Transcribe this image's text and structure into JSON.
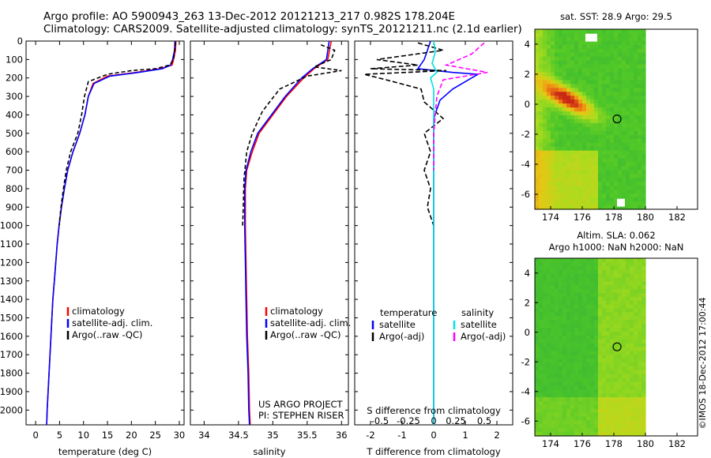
{
  "header": {
    "line1": "Argo profile: AO 5900943_263 13-Dec-2012 20121213_217 0.982S 178.204E",
    "line2": "Climatology: CARS2009. Satellite-adjusted climatology: synTS_20121211.nc (2.1d earlier)"
  },
  "colors": {
    "climatology": "#ff0000",
    "satellite": "#0000ff",
    "argo": "#000000",
    "satellite_salinity": "#00e0e0",
    "argo_salinity": "#ff00ff"
  },
  "chart_data": [
    {
      "type": "line",
      "name": "temperature-profile",
      "xlabel": "temperature (deg C)",
      "ylabel": "",
      "xlim": [
        -2,
        31
      ],
      "ylim": [
        2080,
        0
      ],
      "xticks": [
        0,
        5,
        10,
        15,
        20,
        25,
        30
      ],
      "yticks": [
        0,
        100,
        200,
        300,
        400,
        500,
        600,
        700,
        800,
        900,
        1000,
        1100,
        1200,
        1300,
        1400,
        1500,
        1600,
        1700,
        1800,
        1900,
        2000
      ],
      "legend": [
        "climatology",
        "satellite-adj. clim.",
        "Argo(..raw -QC)"
      ],
      "series": [
        {
          "name": "climatology",
          "color": "#ff0000",
          "dash": "",
          "points": [
            [
              29.3,
              0
            ],
            [
              29.2,
              50
            ],
            [
              28.8,
              100
            ],
            [
              28.5,
              130
            ],
            [
              26,
              150
            ],
            [
              21,
              170
            ],
            [
              15,
              190
            ],
            [
              12,
              230
            ],
            [
              11,
              300
            ],
            [
              10.3,
              400
            ],
            [
              9.2,
              500
            ],
            [
              7.8,
              600
            ],
            [
              6.7,
              700
            ],
            [
              6,
              800
            ],
            [
              5.4,
              900
            ],
            [
              4.9,
              1000
            ],
            [
              4.5,
              1100
            ],
            [
              4.2,
              1200
            ],
            [
              3.9,
              1300
            ],
            [
              3.6,
              1400
            ],
            [
              3.4,
              1500
            ],
            [
              3.2,
              1600
            ],
            [
              3,
              1700
            ],
            [
              2.8,
              1800
            ],
            [
              2.6,
              1900
            ],
            [
              2.4,
              2000
            ],
            [
              2.3,
              2080
            ]
          ]
        },
        {
          "name": "satellite-adj. clim.",
          "color": "#0000ff",
          "dash": "",
          "points": [
            [
              29.1,
              0
            ],
            [
              29,
              50
            ],
            [
              28.6,
              100
            ],
            [
              28.2,
              130
            ],
            [
              26.5,
              150
            ],
            [
              21.5,
              170
            ],
            [
              15.5,
              190
            ],
            [
              12.2,
              230
            ],
            [
              11,
              300
            ],
            [
              10.3,
              400
            ],
            [
              9.2,
              500
            ],
            [
              7.8,
              600
            ],
            [
              6.7,
              700
            ],
            [
              6,
              800
            ],
            [
              5.4,
              900
            ],
            [
              4.9,
              1000
            ],
            [
              4.5,
              1100
            ],
            [
              4.2,
              1200
            ],
            [
              3.9,
              1300
            ],
            [
              3.6,
              1400
            ],
            [
              3.4,
              1500
            ],
            [
              3.2,
              1600
            ],
            [
              3,
              1700
            ],
            [
              2.8,
              1800
            ],
            [
              2.6,
              1900
            ],
            [
              2.4,
              2000
            ],
            [
              2.3,
              2080
            ]
          ]
        },
        {
          "name": "Argo(..raw -QC)",
          "color": "#000000",
          "dash": "5,3",
          "points": [
            [
              29.2,
              5
            ],
            [
              29,
              60
            ],
            [
              28.8,
              100
            ],
            [
              28,
              130
            ],
            [
              25,
              150
            ],
            [
              20,
              160
            ],
            [
              15,
              180
            ],
            [
              11,
              220
            ],
            [
              10.2,
              300
            ],
            [
              9.6,
              400
            ],
            [
              8.8,
              500
            ],
            [
              7.3,
              600
            ],
            [
              6.4,
              700
            ],
            [
              5.8,
              800
            ],
            [
              5.3,
              900
            ],
            [
              4.9,
              1000
            ]
          ]
        }
      ]
    },
    {
      "type": "line",
      "name": "salinity-profile",
      "xlabel": "salinity",
      "xlim": [
        33.8,
        36.1
      ],
      "ylim": [
        2080,
        0
      ],
      "xticks": [
        34,
        34.5,
        35,
        35.5,
        36
      ],
      "legend": [
        "climatology",
        "satellite-adj. clim.",
        "Argo(..raw -QC)"
      ],
      "series": [
        {
          "name": "climatology",
          "color": "#ff0000",
          "dash": "",
          "points": [
            [
              35.85,
              0
            ],
            [
              35.8,
              100
            ],
            [
              35.6,
              150
            ],
            [
              35.45,
              200
            ],
            [
              35.2,
              300
            ],
            [
              35,
              400
            ],
            [
              34.8,
              500
            ],
            [
              34.7,
              600
            ],
            [
              34.62,
              700
            ],
            [
              34.6,
              800
            ],
            [
              34.6,
              1000
            ],
            [
              34.61,
              1200
            ],
            [
              34.62,
              1400
            ],
            [
              34.63,
              1600
            ],
            [
              34.65,
              1800
            ],
            [
              34.66,
              2000
            ],
            [
              34.67,
              2080
            ]
          ]
        },
        {
          "name": "satellite-adj. clim.",
          "color": "#0000ff",
          "dash": "",
          "points": [
            [
              35.82,
              0
            ],
            [
              35.78,
              100
            ],
            [
              35.58,
              150
            ],
            [
              35.42,
              200
            ],
            [
              35.18,
              300
            ],
            [
              34.98,
              400
            ],
            [
              34.78,
              500
            ],
            [
              34.68,
              600
            ],
            [
              34.61,
              700
            ],
            [
              34.59,
              800
            ],
            [
              34.59,
              1000
            ],
            [
              34.6,
              1200
            ],
            [
              34.61,
              1400
            ],
            [
              34.62,
              1600
            ],
            [
              34.64,
              1800
            ],
            [
              34.65,
              2000
            ],
            [
              34.66,
              2080
            ]
          ]
        },
        {
          "name": "Argo(..raw -QC)",
          "color": "#000000",
          "dash": "5,3",
          "points": [
            [
              35.7,
              20
            ],
            [
              35.9,
              50
            ],
            [
              35.85,
              100
            ],
            [
              35.6,
              140
            ],
            [
              36,
              160
            ],
            [
              35.5,
              190
            ],
            [
              35.1,
              260
            ],
            [
              34.85,
              380
            ],
            [
              34.7,
              500
            ],
            [
              34.62,
              600
            ],
            [
              34.58,
              750
            ],
            [
              34.57,
              900
            ],
            [
              34.56,
              1000
            ]
          ]
        }
      ]
    },
    {
      "type": "line",
      "name": "difference-profile",
      "xlabel": "T difference from climatology",
      "xlabel_top": "S difference from climatology",
      "xlim": [
        -2.5,
        2.5
      ],
      "ylim": [
        2080,
        0
      ],
      "xticks": [
        -2,
        -1,
        0,
        1,
        2
      ],
      "sticks_labels": [
        "-0.5",
        "-0.25",
        "0",
        "0.25",
        "0.5"
      ],
      "legend_titles": [
        "temperature",
        "salinity"
      ],
      "legend": [
        "satellite",
        "Argo(-adj)",
        "satellite",
        "Argo(-adj)"
      ],
      "series": [
        {
          "name": "T satellite",
          "color": "#0000ff",
          "dash": "",
          "points": [
            [
              -0.1,
              0
            ],
            [
              -0.2,
              50
            ],
            [
              -0.3,
              100
            ],
            [
              -0.5,
              150
            ],
            [
              0.6,
              170
            ],
            [
              1.4,
              180
            ],
            [
              1.2,
              200
            ],
            [
              0.6,
              260
            ],
            [
              0.2,
              320
            ],
            [
              0,
              420
            ],
            [
              0,
              2080
            ]
          ]
        },
        {
          "name": "T Argo(-adj)",
          "color": "#000000",
          "dash": "6,3",
          "points": [
            [
              -0.5,
              10
            ],
            [
              0.3,
              50
            ],
            [
              -1.8,
              100
            ],
            [
              -0.5,
              130
            ],
            [
              -2,
              150
            ],
            [
              0.4,
              160
            ],
            [
              -2.2,
              180
            ],
            [
              -1.5,
              210
            ],
            [
              -0.4,
              260
            ],
            [
              -0.3,
              330
            ],
            [
              0.3,
              420
            ],
            [
              -0.3,
              500
            ],
            [
              -0.1,
              600
            ],
            [
              -0.3,
              700
            ],
            [
              -0.1,
              800
            ],
            [
              -0.2,
              900
            ],
            [
              0,
              1000
            ]
          ]
        },
        {
          "name": "S satellite",
          "color": "#00e0e0",
          "dash": "",
          "points": [
            [
              0,
              0
            ],
            [
              0.05,
              60
            ],
            [
              -0.05,
              120
            ],
            [
              0.1,
              170
            ],
            [
              -0.1,
              200
            ],
            [
              0,
              260
            ],
            [
              0,
              2080
            ]
          ]
        },
        {
          "name": "S Argo(-adj)",
          "color": "#ff00ff",
          "dash": "6,3",
          "points": [
            [
              1.6,
              10
            ],
            [
              1.2,
              70
            ],
            [
              0.4,
              130
            ],
            [
              1.7,
              170
            ],
            [
              0.3,
              210
            ],
            [
              0.1,
              300
            ],
            [
              0,
              500
            ],
            [
              0,
              700
            ]
          ]
        }
      ]
    },
    {
      "type": "heatmap",
      "name": "sst-map",
      "title": "sat. SST: 28.9  Argo: 29.5",
      "xlim": [
        173,
        183.3
      ],
      "ylim": [
        -7,
        5
      ],
      "xticks": [
        174,
        176,
        178,
        180,
        182
      ],
      "yticks": [
        -6,
        -4,
        -2,
        0,
        2,
        4
      ],
      "argo_position": [
        178.204,
        -0.982
      ]
    },
    {
      "type": "heatmap",
      "name": "sla-map",
      "title_line1": "Altim. SLA: 0.062",
      "title_line2": "Argo h1000: NaN h2000: NaN",
      "xlim": [
        173,
        183.3
      ],
      "ylim": [
        -7,
        5
      ],
      "xticks": [
        174,
        176,
        178,
        180,
        182
      ],
      "yticks": [
        -6,
        -4,
        -2,
        0,
        2,
        4
      ],
      "argo_position": [
        178.204,
        -0.982
      ]
    }
  ],
  "annotations": {
    "project_line1": "US ARGO PROJECT",
    "project_line2": "PI: STEPHEN RISER",
    "imos_stamp": "©IMOS 18-Dec-2012 17:00:44"
  }
}
